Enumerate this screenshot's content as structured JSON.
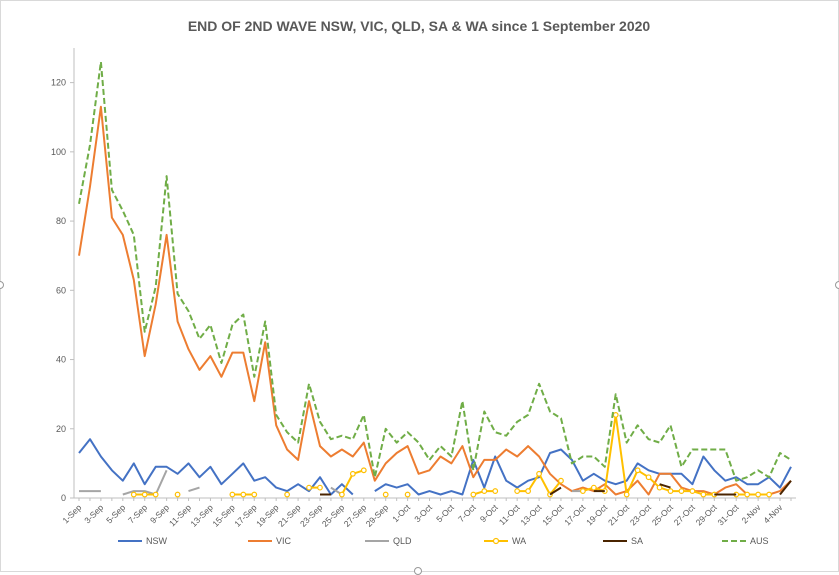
{
  "chart_data": {
    "type": "line",
    "title": "END OF 2ND WAVE NSW, VIC, QLD, SA & WA since 1 September 2020",
    "xlabel": "",
    "ylabel": "",
    "ylim": [
      0,
      130
    ],
    "yticks": [
      "0",
      "20",
      "40",
      "60",
      "80",
      "100",
      "120"
    ],
    "ytick_values": [
      0,
      20,
      40,
      60,
      80,
      100,
      120
    ],
    "grid": "none",
    "legend_position": "bottom",
    "x_tick_labels": [
      "1-Sep",
      "3-Sep",
      "5-Sep",
      "7-Sep",
      "9-Sep",
      "11-Sep",
      "13-Sep",
      "15-Sep",
      "17-Sep",
      "19-Sep",
      "21-Sep",
      "23-Sep",
      "25-Sep",
      "27-Sep",
      "29-Sep",
      "1-Oct",
      "3-Oct",
      "5-Oct",
      "7-Oct",
      "9-Oct",
      "11-Oct",
      "13-Oct",
      "15-Oct",
      "17-Oct",
      "19-Oct",
      "21-Oct",
      "23-Oct",
      "25-Oct",
      "27-Oct",
      "29-Oct",
      "31-Oct",
      "2-Nov",
      "4-Nov"
    ],
    "categories_count": 66,
    "series": [
      {
        "name": "NSW",
        "color": "#4472c4",
        "style": "solid",
        "marker": false,
        "values": [
          13,
          17,
          12,
          8,
          5,
          10,
          4,
          9,
          9,
          7,
          10,
          6,
          9,
          4,
          7,
          10,
          5,
          6,
          3,
          2,
          4,
          2,
          6,
          1,
          4,
          1,
          null,
          2,
          4,
          3,
          4,
          1,
          2,
          1,
          2,
          1,
          11,
          3,
          12,
          5,
          3,
          5,
          6,
          13,
          14,
          11,
          5,
          7,
          5,
          4,
          5,
          10,
          8,
          7,
          7,
          7,
          4,
          12,
          8,
          5,
          6,
          4,
          4,
          6,
          3,
          9
        ]
      },
      {
        "name": "VIC",
        "color": "#ed7d31",
        "style": "solid",
        "marker": false,
        "values": [
          70,
          90,
          113,
          81,
          76,
          63,
          41,
          56,
          76,
          51,
          43,
          37,
          41,
          35,
          42,
          42,
          28,
          45,
          21,
          14,
          11,
          28,
          15,
          12,
          14,
          12,
          16,
          5,
          10,
          13,
          15,
          7,
          8,
          12,
          10,
          15,
          6,
          11,
          11,
          14,
          12,
          15,
          12,
          7,
          4,
          2,
          3,
          2,
          4,
          1,
          2,
          5,
          1,
          7,
          7,
          3,
          2,
          2,
          1,
          3,
          4,
          1,
          1,
          1,
          2,
          5
        ]
      },
      {
        "name": "QLD",
        "color": "#a5a5a5",
        "style": "solid",
        "marker": false,
        "values": [
          2,
          2,
          2,
          null,
          1,
          2,
          2,
          1,
          8,
          null,
          2,
          3,
          null,
          null,
          null,
          null,
          null,
          null,
          null,
          null,
          1,
          null,
          null,
          3,
          1,
          null,
          2,
          null,
          null,
          null,
          null,
          null,
          null,
          null,
          null,
          null,
          null,
          null,
          null,
          null,
          null,
          null,
          null,
          null,
          null,
          2,
          2,
          null,
          null,
          null,
          null,
          null,
          null,
          null,
          null,
          null,
          null,
          null,
          null,
          null,
          null,
          null,
          null,
          null,
          null,
          null
        ]
      },
      {
        "name": "WA",
        "color": "#ffc000",
        "style": "solid",
        "marker": true,
        "values": [
          null,
          null,
          null,
          null,
          null,
          1,
          1,
          1,
          null,
          1,
          null,
          null,
          null,
          null,
          1,
          1,
          1,
          null,
          null,
          1,
          null,
          3,
          3,
          null,
          1,
          7,
          8,
          null,
          1,
          null,
          1,
          null,
          null,
          null,
          null,
          null,
          1,
          2,
          2,
          null,
          2,
          2,
          7,
          1,
          5,
          null,
          2,
          3,
          2,
          24,
          1,
          8,
          6,
          3,
          2,
          2,
          2,
          1,
          1,
          null,
          1,
          1,
          1,
          1,
          null,
          null
        ]
      },
      {
        "name": "SA",
        "color": "#4a2400",
        "style": "solid",
        "marker": false,
        "values": [
          null,
          null,
          null,
          null,
          null,
          null,
          null,
          null,
          null,
          null,
          null,
          null,
          null,
          null,
          null,
          null,
          null,
          null,
          null,
          null,
          null,
          null,
          1,
          1,
          null,
          null,
          null,
          null,
          null,
          null,
          null,
          null,
          null,
          null,
          null,
          null,
          null,
          null,
          null,
          null,
          null,
          null,
          null,
          1,
          3,
          null,
          null,
          2,
          2,
          null,
          null,
          null,
          null,
          4,
          3,
          null,
          null,
          null,
          1,
          1,
          1,
          null,
          null,
          null,
          1,
          5
        ]
      },
      {
        "name": "AUS",
        "color": "#70ad47",
        "style": "dashed",
        "marker": false,
        "values": [
          85,
          102,
          126,
          89,
          83,
          76,
          48,
          61,
          93,
          59,
          54,
          46,
          50,
          39,
          50,
          53,
          35,
          51,
          24,
          19,
          16,
          33,
          22,
          17,
          18,
          17,
          24,
          6,
          20,
          16,
          19,
          16,
          11,
          15,
          12,
          28,
          8,
          25,
          19,
          18,
          22,
          24,
          33,
          25,
          23,
          10,
          12,
          12,
          9,
          30,
          16,
          21,
          17,
          16,
          21,
          9,
          14,
          14,
          14,
          14,
          5,
          6,
          8,
          6,
          13,
          11
        ]
      }
    ]
  }
}
